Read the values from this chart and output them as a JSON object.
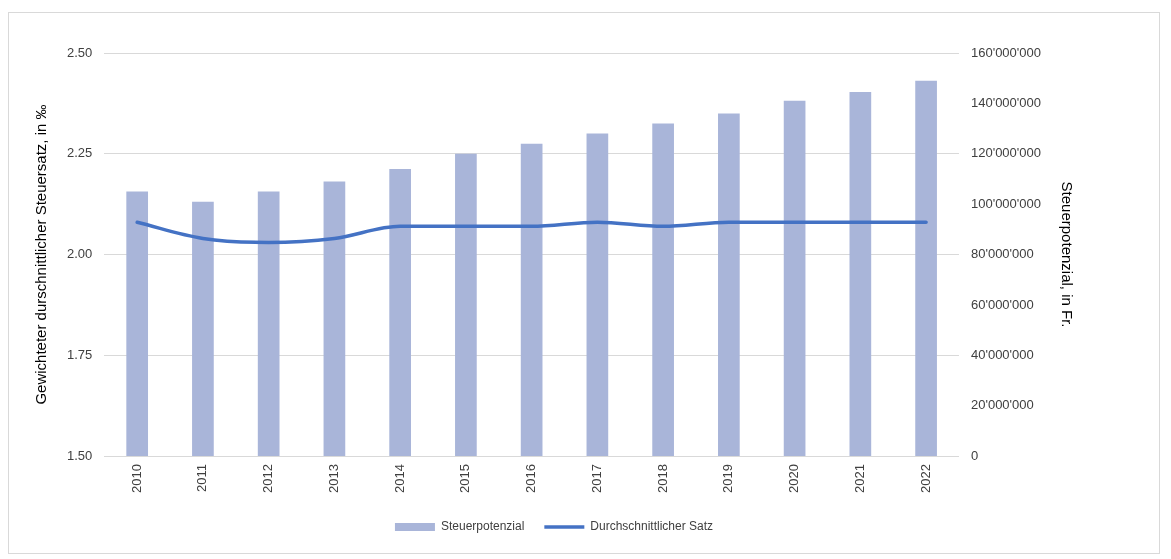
{
  "chart_data": {
    "type": "bar",
    "ylabel": "Gewichteter durschnittlicher Steuersatz, in ‰",
    "y2label": "Steuerpotenzial, in Fr.",
    "categories": [
      "2010",
      "2011",
      "2012",
      "2013",
      "2014",
      "2015",
      "2016",
      "2017",
      "2018",
      "2019",
      "2020",
      "2021",
      "2022"
    ],
    "series": [
      {
        "name": "Steuerpotenzial",
        "axis": "y2",
        "color": "#a9b5d9",
        "values": [
          105000000,
          101000000,
          105000000,
          109000000,
          114000000,
          120000000,
          124000000,
          128000000,
          132000000,
          136000000,
          141000000,
          144500000,
          149000000
        ]
      },
      {
        "name": "Durchschnittlicher Satz",
        "type": "line",
        "color": "#4472c4",
        "values": [
          2.08,
          2.04,
          2.03,
          2.04,
          2.07,
          2.07,
          2.07,
          2.08,
          2.07,
          2.08,
          2.08,
          2.08,
          2.08
        ]
      }
    ],
    "ylim": [
      1.5,
      2.5
    ],
    "yticks": [
      {
        "value": 1.5,
        "label": "1.50"
      },
      {
        "value": 1.75,
        "label": "1.75"
      },
      {
        "value": 2,
        "label": "2.00"
      },
      {
        "value": 2.25,
        "label": "2.25"
      },
      {
        "value": 2.5,
        "label": "2.50"
      }
    ],
    "y2lim": [
      0,
      160000000
    ],
    "y2ticks": [
      {
        "value": 0,
        "label": "0"
      },
      {
        "value": 20000000,
        "label": "20'000'000"
      },
      {
        "value": 40000000,
        "label": "40'000'000"
      },
      {
        "value": 60000000,
        "label": "60'000'000"
      },
      {
        "value": 80000000,
        "label": "80'000'000"
      },
      {
        "value": 100000000,
        "label": "100'000'000"
      },
      {
        "value": 120000000,
        "label": "120'000'000"
      },
      {
        "value": 140000000,
        "label": "140'000'000"
      },
      {
        "value": 160000000,
        "label": "160'000'000"
      }
    ],
    "grid": "y",
    "legend": "bottom",
    "marker": "none",
    "line_style": "solid"
  }
}
